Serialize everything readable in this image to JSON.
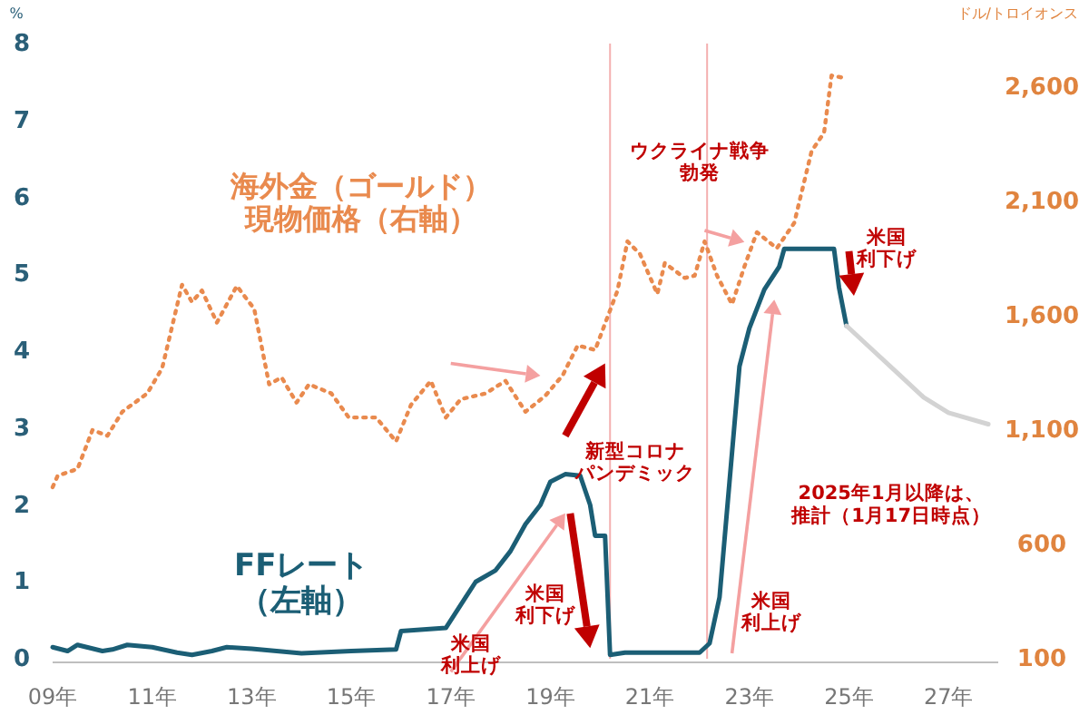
{
  "chart_data": {
    "type": "line",
    "ylabel": "%",
    "y2label": "ドル/トロイオンス",
    "x": [
      9,
      9.3,
      9.5,
      10,
      10.2,
      10.5,
      11,
      11.5,
      11.8,
      12.2,
      12.5,
      13,
      13.5,
      14,
      15,
      15.9,
      16.0,
      16.9,
      17.2,
      17.5,
      17.9,
      18.2,
      18.5,
      18.8,
      19.0,
      19.3,
      19.6,
      19.8,
      19.9,
      20.1,
      20.2,
      20.5,
      21,
      22.0,
      22.2,
      22.4,
      22.6,
      22.8,
      23.0,
      23.3,
      23.6,
      23.7,
      24.7,
      24.8,
      24.95
    ],
    "series": [
      {
        "name": "FFレート（左軸）",
        "color": "#1b5e75",
        "line_style": "solid",
        "values": [
          0.15,
          0.1,
          0.18,
          0.1,
          0.12,
          0.18,
          0.15,
          0.08,
          0.05,
          0.1,
          0.15,
          0.13,
          0.1,
          0.07,
          0.1,
          0.12,
          0.36,
          0.4,
          0.7,
          1.0,
          1.15,
          1.4,
          1.75,
          2.0,
          2.3,
          2.4,
          2.38,
          2.0,
          1.6,
          1.6,
          0.05,
          0.08,
          0.08,
          0.08,
          0.2,
          0.8,
          2.3,
          3.8,
          4.3,
          4.8,
          5.1,
          5.33,
          5.33,
          4.83,
          4.33
        ]
      },
      {
        "color": "#d3d3d3",
        "line_style": "solid",
        "x": [
          24.95,
          25.5,
          26,
          26.5,
          27,
          27.8
        ],
        "values": [
          4.33,
          4.0,
          3.7,
          3.4,
          3.2,
          3.05
        ]
      },
      {
        "name": "海外金（ゴールド）現物価格（右軸）",
        "color": "#e98a4e",
        "line_style": "dotted",
        "axis": "y2",
        "x": [
          9,
          9.1,
          9.5,
          9.8,
          10.1,
          10.4,
          10.9,
          11.2,
          11.6,
          11.8,
          12.0,
          12.3,
          12.7,
          13.05,
          13.35,
          13.6,
          13.9,
          14.15,
          14.6,
          14.95,
          15.5,
          15.9,
          16.2,
          16.6,
          16.9,
          17.2,
          17.7,
          18.1,
          18.5,
          18.9,
          19.25,
          19.55,
          19.9,
          20.35,
          20.55,
          20.8,
          21.15,
          21.3,
          21.7,
          21.9,
          22.1,
          22.35,
          22.65,
          22.9,
          23.15,
          23.55,
          23.9,
          24.25,
          24.5,
          24.65,
          24.9
        ],
        "values": [
          850,
          900,
          930,
          1100,
          1075,
          1180,
          1260,
          1370,
          1735,
          1660,
          1710,
          1570,
          1730,
          1630,
          1300,
          1330,
          1220,
          1300,
          1260,
          1155,
          1155,
          1050,
          1210,
          1315,
          1155,
          1235,
          1260,
          1315,
          1180,
          1250,
          1340,
          1470,
          1450,
          1710,
          1925,
          1870,
          1695,
          1830,
          1765,
          1775,
          1925,
          1775,
          1650,
          1815,
          1965,
          1895,
          2005,
          2320,
          2400,
          2650,
          2640
        ]
      }
    ],
    "xlim": [
      9,
      28
    ],
    "xticks": [
      {
        "value": 9,
        "label": "09年"
      },
      {
        "value": 11,
        "label": "11年"
      },
      {
        "value": 13,
        "label": "13年"
      },
      {
        "value": 15,
        "label": "15年"
      },
      {
        "value": 17,
        "label": "17年"
      },
      {
        "value": 19,
        "label": "19年"
      },
      {
        "value": 21,
        "label": "21年"
      },
      {
        "value": 23,
        "label": "23年"
      },
      {
        "value": 25,
        "label": "25年"
      },
      {
        "value": 27,
        "label": "27年"
      }
    ],
    "ylim": [
      0,
      8
    ],
    "yticks": [
      0,
      1,
      2,
      3,
      4,
      5,
      6,
      7,
      8
    ],
    "y2lim": [
      100,
      2790
    ],
    "y2ticks": [
      100,
      600,
      {
        "value": 1100,
        "label": "1,100"
      },
      {
        "value": 1600,
        "label": "1,600"
      },
      {
        "value": 2100,
        "label": "2,100"
      },
      {
        "value": 2600,
        "label": "2,600"
      }
    ],
    "ref_lines": [
      {
        "axis": "x",
        "value": 20.2,
        "color": "#f4b0b0"
      },
      {
        "axis": "x",
        "value": 22.15,
        "color": "#f4b0b0"
      }
    ],
    "annotations": [
      "米国利上げ",
      "米国利下げ",
      "新型コロナパンデミック",
      "ウクライナ戦争勃発",
      "米国利下げ",
      "米国利上げ",
      "2025年1月以降は、推計（1月17日時点）"
    ],
    "grid": false,
    "marker": "none"
  }
}
